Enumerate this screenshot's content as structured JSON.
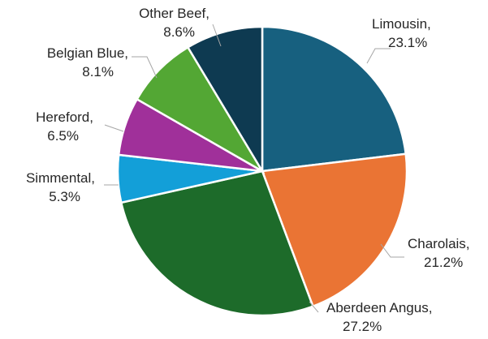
{
  "chart_data": {
    "type": "pie",
    "title": "",
    "start_angle_deg": 0,
    "direction": "clockwise",
    "slices": [
      {
        "name": "Limousin",
        "label": "Limousin,",
        "value_label": "23.1%",
        "value": 23.1,
        "color": "#17607f"
      },
      {
        "name": "Charolais",
        "label": "Charolais,",
        "value_label": "21.2%",
        "value": 21.2,
        "color": "#ea7434"
      },
      {
        "name": "Aberdeen Angus",
        "label": "Aberdeen Angus,",
        "value_label": "27.2%",
        "value": 27.2,
        "color": "#1d6b2a"
      },
      {
        "name": "Simmental",
        "label": "Simmental,",
        "value_label": "5.3%",
        "value": 5.3,
        "color": "#139fd8"
      },
      {
        "name": "Hereford",
        "label": "Hereford,",
        "value_label": "6.5%",
        "value": 6.5,
        "color": "#a0309a"
      },
      {
        "name": "Belgian Blue",
        "label": "Belgian Blue,",
        "value_label": "8.1%",
        "value": 8.1,
        "color": "#53a734"
      },
      {
        "name": "Other Beef",
        "label": "Other Beef,",
        "value_label": "8.6%",
        "value": 8.6,
        "color": "#0e3a51"
      }
    ]
  }
}
